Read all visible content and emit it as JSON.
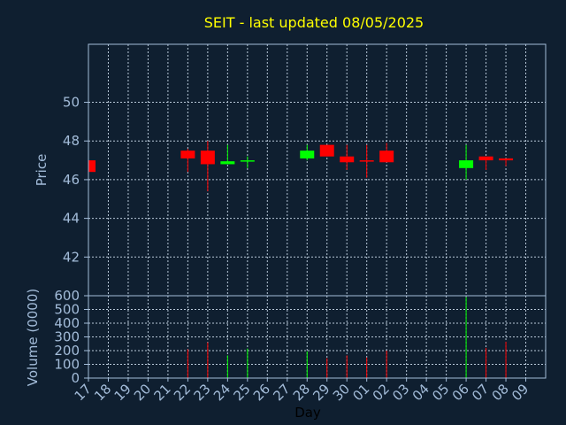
{
  "chart_data": {
    "type": "candlestick",
    "title": "SEIT - last updated 08/05/2025",
    "xlabel": "Day",
    "price_ylabel": "Price",
    "volume_ylabel": "Volume (0000)",
    "price_ylim": [
      40,
      53
    ],
    "price_ticks": [
      "42",
      "44",
      "46",
      "48",
      "50"
    ],
    "volume_ylim": [
      0,
      600
    ],
    "volume_ticks": [
      "0",
      "100",
      "200",
      "300",
      "400",
      "500",
      "600"
    ],
    "x_ticks": [
      "17",
      "18",
      "19",
      "20",
      "21",
      "22",
      "23",
      "24",
      "25",
      "26",
      "27",
      "28",
      "29",
      "30",
      "01",
      "02",
      "03",
      "04",
      "05",
      "06",
      "07",
      "08",
      "09"
    ],
    "candles": [
      {
        "day": "17",
        "open": 47.0,
        "high": 47.1,
        "low": 46.4,
        "close": 46.4,
        "volume": 0
      },
      {
        "day": "22",
        "open": 47.5,
        "high": 47.6,
        "low": 46.4,
        "close": 47.1,
        "volume": 210
      },
      {
        "day": "23",
        "open": 47.5,
        "high": 48.0,
        "low": 45.4,
        "close": 46.8,
        "volume": 260
      },
      {
        "day": "24",
        "open": 46.8,
        "high": 47.8,
        "low": 46.8,
        "close": 46.95,
        "volume": 165
      },
      {
        "day": "25",
        "open": 46.95,
        "high": 47.2,
        "low": 46.6,
        "close": 47.0,
        "volume": 215
      },
      {
        "day": "28",
        "open": 47.1,
        "high": 47.8,
        "low": 47.0,
        "close": 47.5,
        "volume": 195
      },
      {
        "day": "29",
        "open": 47.8,
        "high": 47.8,
        "low": 47.2,
        "close": 47.2,
        "volume": 145
      },
      {
        "day": "30",
        "open": 47.2,
        "high": 47.8,
        "low": 46.5,
        "close": 46.9,
        "volume": 165
      },
      {
        "day": "01",
        "open": 47.0,
        "high": 47.8,
        "low": 46.1,
        "close": 46.95,
        "volume": 150
      },
      {
        "day": "02",
        "open": 47.5,
        "high": 47.9,
        "low": 46.9,
        "close": 46.9,
        "volume": 200
      },
      {
        "day": "06",
        "open": 46.6,
        "high": 47.8,
        "low": 46.0,
        "close": 47.0,
        "volume": 590
      },
      {
        "day": "07",
        "open": 47.2,
        "high": 47.2,
        "low": 46.5,
        "close": 47.0,
        "volume": 220
      },
      {
        "day": "08",
        "open": 47.1,
        "high": 47.1,
        "low": 46.7,
        "close": 47.0,
        "volume": 265
      }
    ],
    "colors": {
      "background": "#0f1f30",
      "axis": "#a3bcd9",
      "grid": "#b8c8d8",
      "up": "#00ff00",
      "down": "#ff0000",
      "title": "#ffff00"
    },
    "grid": true
  }
}
